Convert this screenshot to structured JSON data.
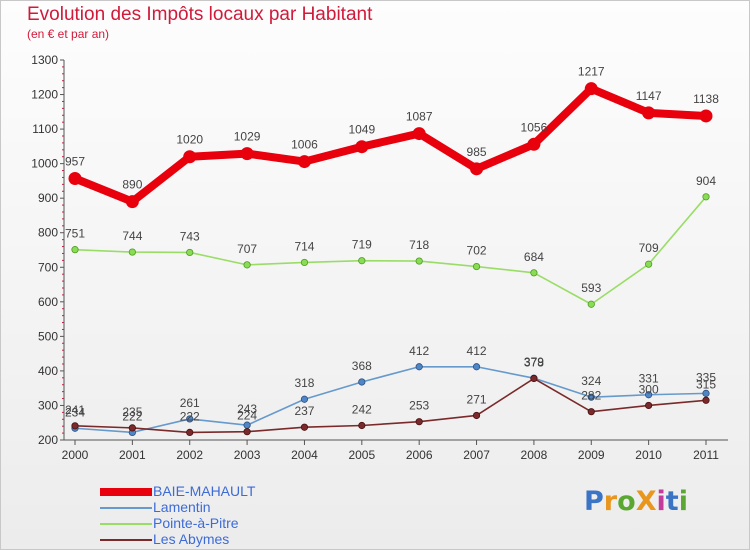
{
  "title": "Evolution des Impôts locaux par Habitant",
  "subtitle": "(en € et par an)",
  "logo": {
    "text": "ProXiti",
    "colors": [
      "#3b73c5",
      "#e8961d",
      "#5aa832",
      "#e8961d",
      "#c43b9d",
      "#3b73c5",
      "#5aa832"
    ]
  },
  "chart_data": {
    "type": "line",
    "x": [
      "2000",
      "2001",
      "2002",
      "2003",
      "2004",
      "2005",
      "2006",
      "2007",
      "2008",
      "2009",
      "2010",
      "2011"
    ],
    "ylim": [
      200,
      1300
    ],
    "yticks": [
      "200",
      "300",
      "400",
      "500",
      "600",
      "700",
      "800",
      "900",
      "1000",
      "1100",
      "1200",
      "1300"
    ],
    "grid": false,
    "legend_position": "bottom-left",
    "series": [
      {
        "name": "BAIE-MAHAULT",
        "color": "#e8000d",
        "values": [
          957,
          890,
          1020,
          1029,
          1006,
          1049,
          1087,
          985,
          1056,
          1217,
          1147,
          1138
        ]
      },
      {
        "name": "Lamentin",
        "color": "#6699cc",
        "values": [
          234,
          222,
          261,
          243,
          318,
          368,
          412,
          412,
          379,
          324,
          331,
          335
        ]
      },
      {
        "name": "Pointe-à-Pitre",
        "color": "#99dd66",
        "values": [
          751,
          744,
          743,
          707,
          714,
          719,
          718,
          702,
          684,
          593,
          709,
          904
        ]
      },
      {
        "name": "Les Abymes",
        "color": "#7a2a2a",
        "values": [
          241,
          235,
          222,
          224,
          237,
          242,
          253,
          271,
          378,
          282,
          300,
          315
        ]
      }
    ],
    "data_labels": [
      [
        "957",
        "890",
        "1020",
        "1029",
        "1006",
        "1049",
        "1087",
        "985",
        "1056",
        "1217",
        "1147",
        "1138"
      ],
      [
        "234",
        "222",
        "261",
        "243",
        "318",
        "368",
        "412",
        "412",
        "379",
        "324",
        "331",
        "335"
      ],
      [
        "751",
        "744",
        "743",
        "707",
        "714",
        "719",
        "718",
        "702",
        "684",
        "593",
        "709",
        "904"
      ],
      [
        "241",
        "235",
        "222",
        "224",
        "237",
        "242",
        "253",
        "271",
        "378",
        "282",
        "300",
        "315"
      ]
    ]
  }
}
